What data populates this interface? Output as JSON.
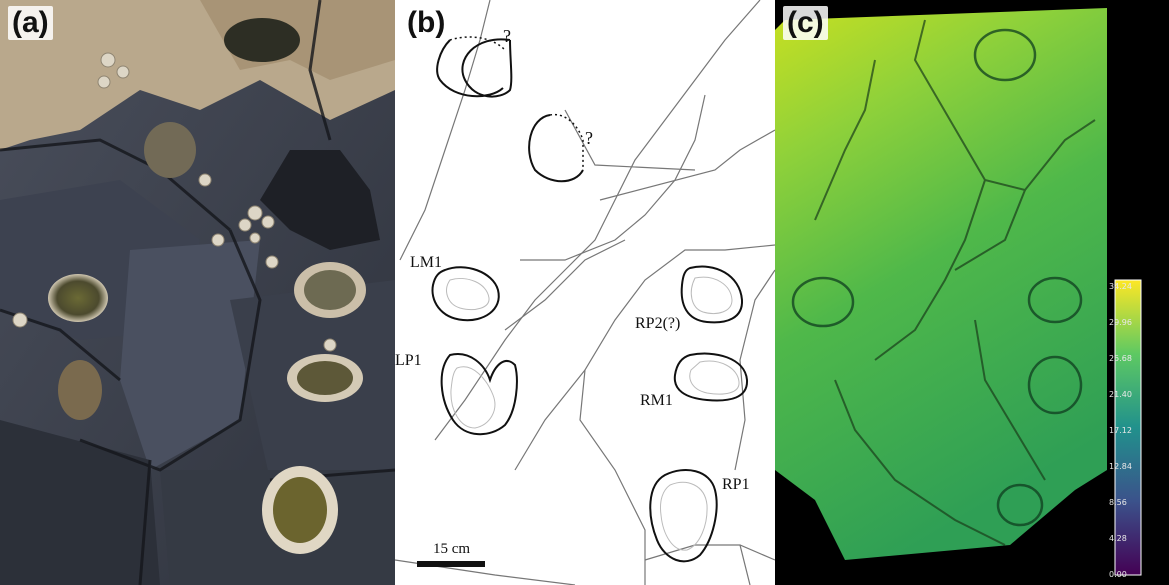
{
  "panels": {
    "a": {
      "letter": "(a)"
    },
    "b": {
      "letter": "(b)",
      "question_marks": [
        "?",
        "?"
      ],
      "labels": {
        "lm1": "LM1",
        "lp1": "LP1",
        "rp2": "RP2(?)",
        "rm1": "RM1",
        "rp1": "RP1"
      },
      "scale_bar": "15 cm"
    },
    "c": {
      "letter": "(c)",
      "colorbar_ticks": [
        "34.24",
        "29.96",
        "25.68",
        "21.40",
        "17.12",
        "12.84",
        "8.56",
        "4.28",
        "0.00"
      ],
      "colormap": [
        "#440154",
        "#3b528b",
        "#21918c",
        "#5ec962",
        "#fde725"
      ]
    }
  }
}
